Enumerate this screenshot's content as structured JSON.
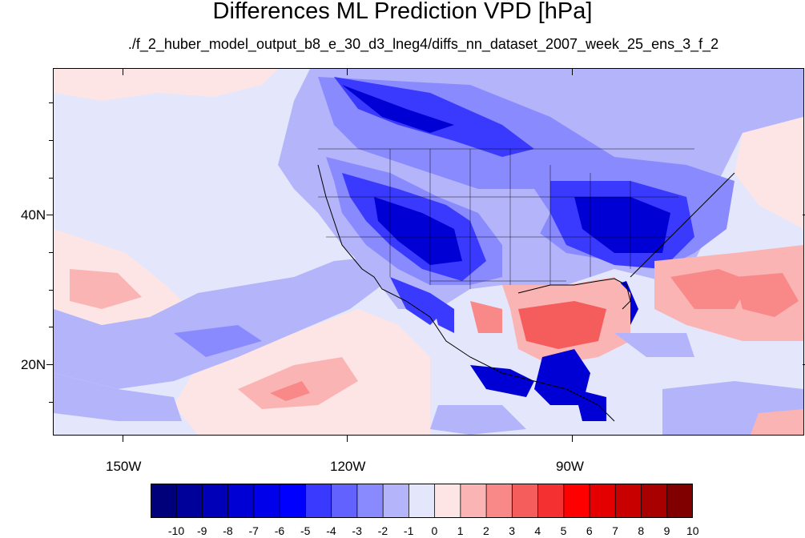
{
  "title": "Differences ML Prediction VPD [hPa]",
  "subtitle": "./f_2_huber_model_output_b8_e_30_d3_lneg4/diffs_nn_dataset_2007_week_25_ens_3_f_2",
  "lat_labels": [
    "40N",
    "20N"
  ],
  "lon_labels": [
    "150W",
    "120W",
    "90W"
  ],
  "colorbar": {
    "labels": [
      "-10",
      "-9",
      "-8",
      "-7",
      "-6",
      "-5",
      "-4",
      "-3",
      "-2",
      "-1",
      "0",
      "1",
      "2",
      "3",
      "4",
      "5",
      "6",
      "7",
      "8",
      "9",
      "10"
    ],
    "colors": [
      "#00007a",
      "#00009a",
      "#0000b8",
      "#0000d4",
      "#0000ea",
      "#0000ff",
      "#3a3aff",
      "#6262ff",
      "#8a8aff",
      "#b4b4fa",
      "#e4e7fb",
      "#fde5e5",
      "#fbb4b4",
      "#f98888",
      "#f55c5c",
      "#f43030",
      "#ff0000",
      "#e40000",
      "#c80000",
      "#a80000",
      "#800000"
    ]
  },
  "palette": {
    "neutral": "#e4e7fb",
    "light_blue": "#b4b4fa",
    "mid_blue": "#8a8aff",
    "blue": "#3a3aff",
    "dark_blue": "#0000d4",
    "light_red": "#fde5e5",
    "pink": "#fbb4b4",
    "red": "#f55c5c",
    "border": "#000000"
  }
}
